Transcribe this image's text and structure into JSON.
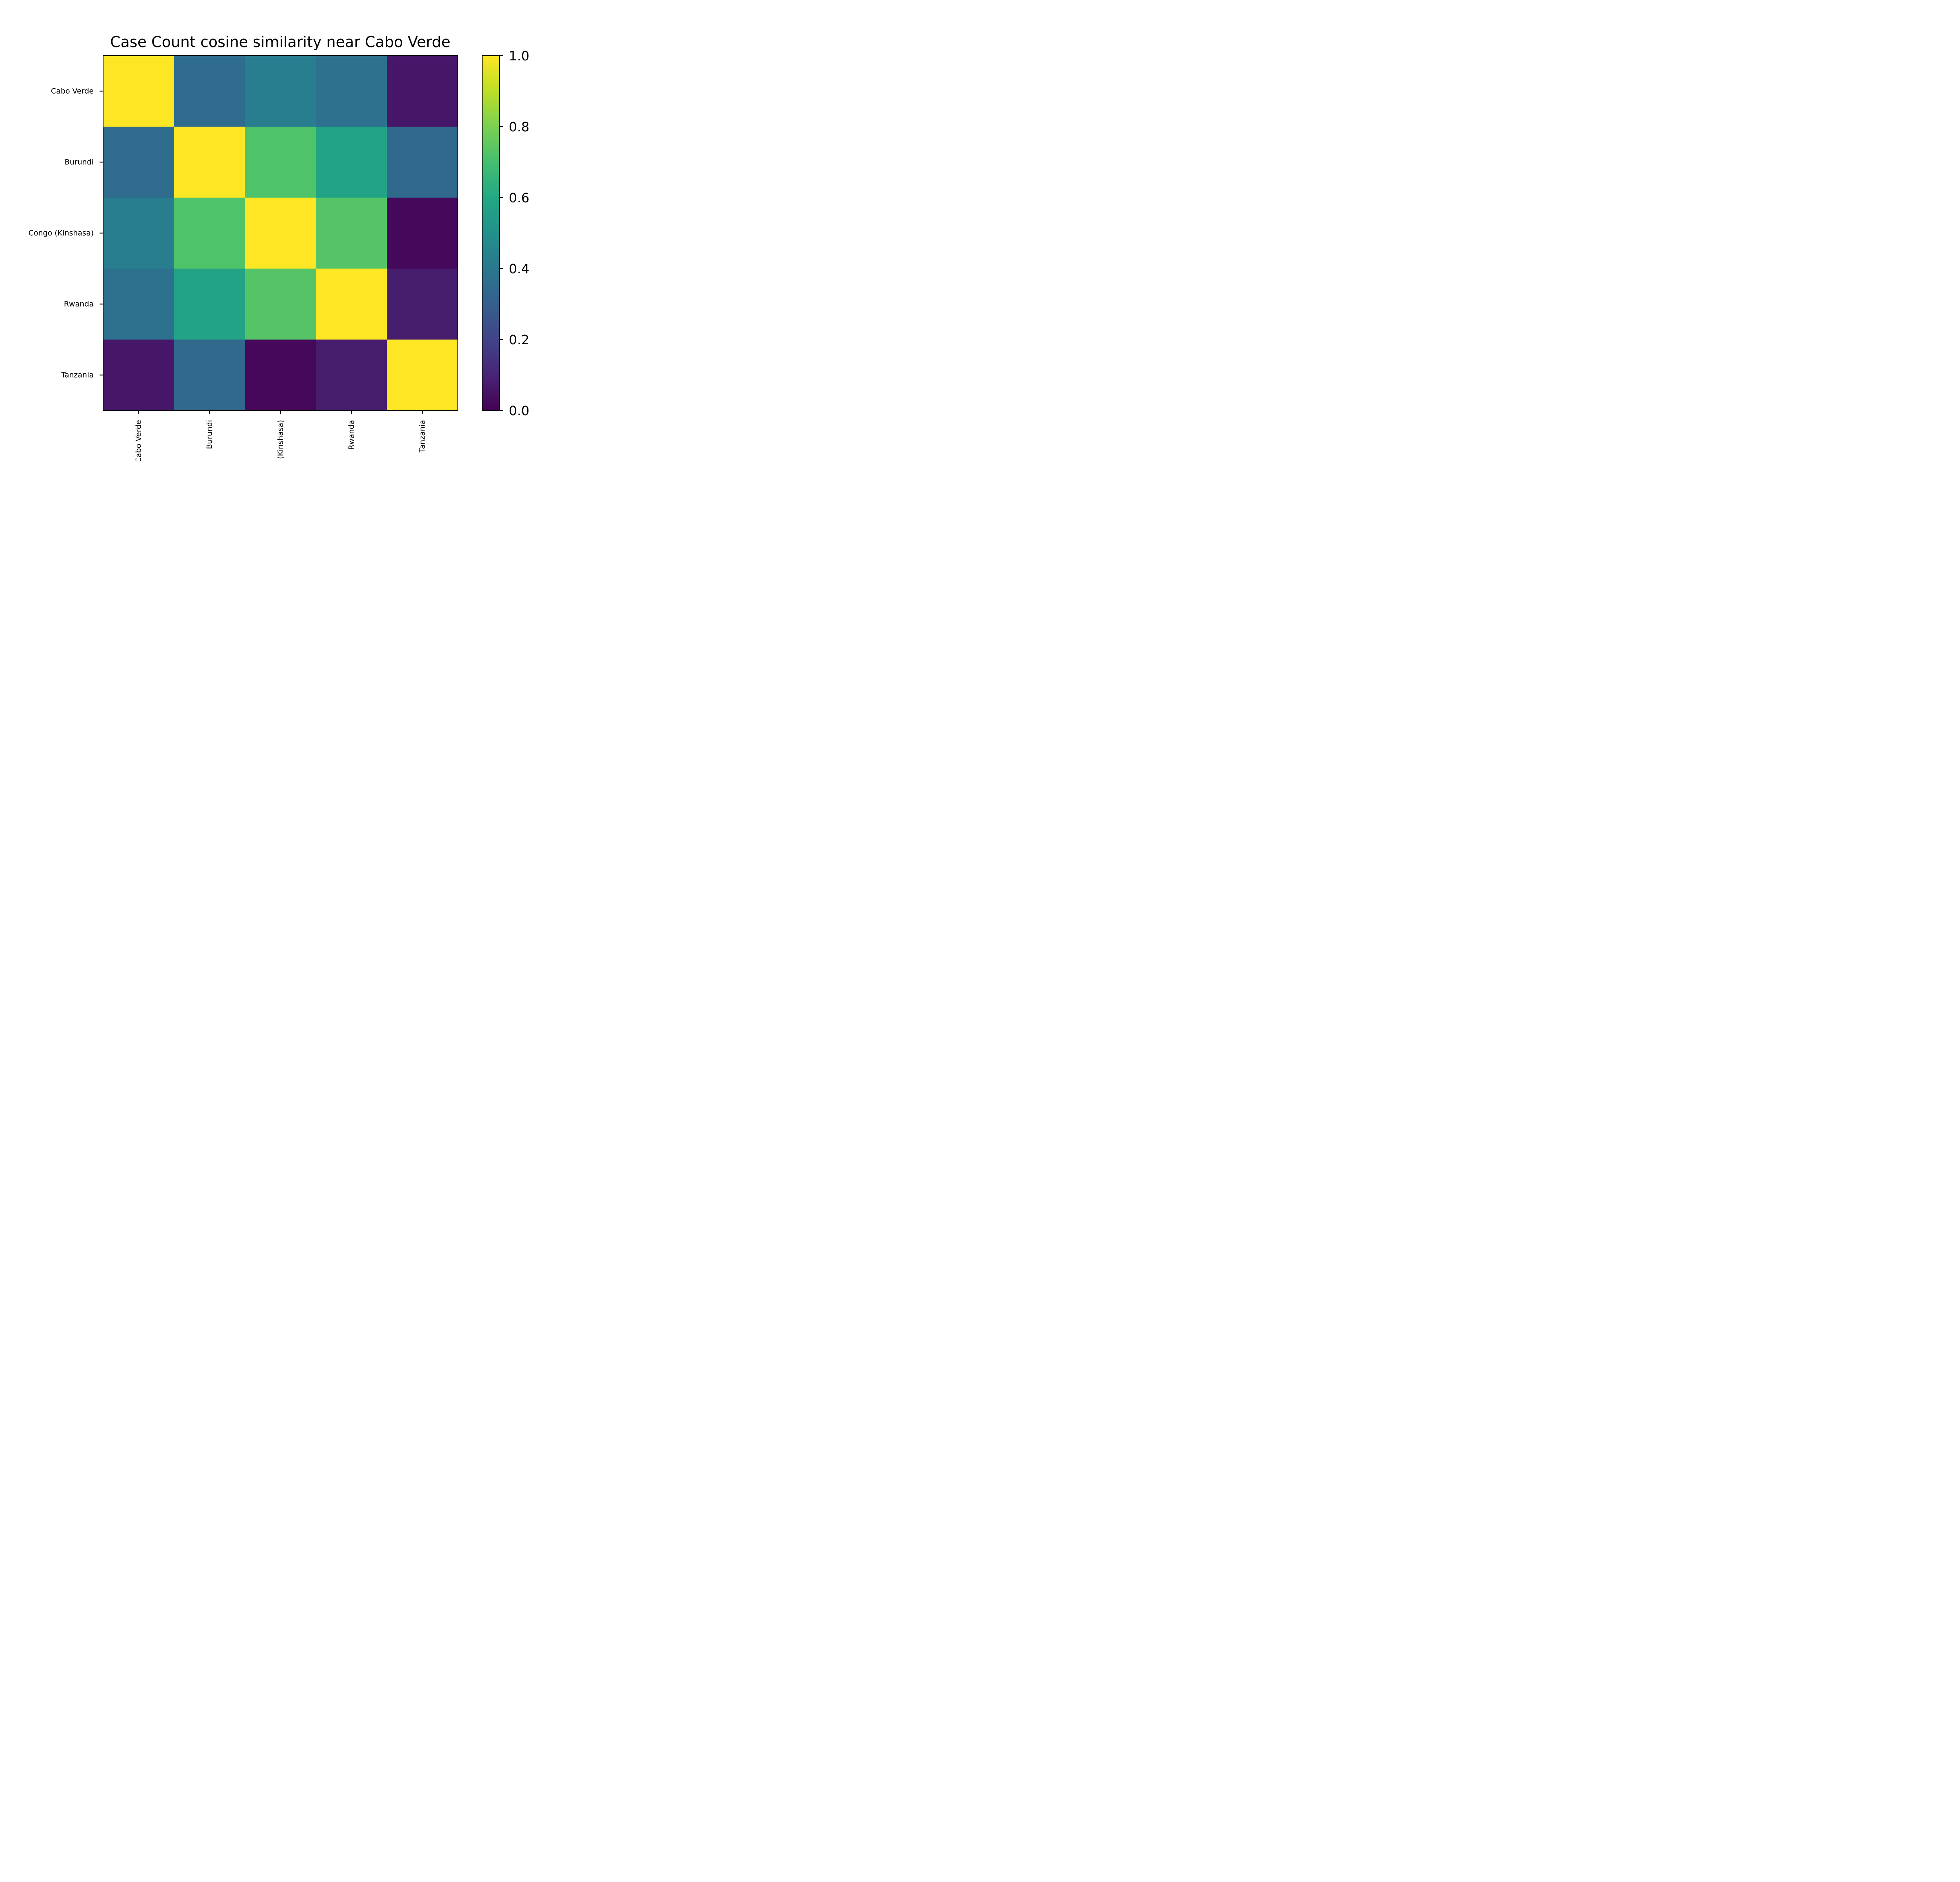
{
  "chart_data": {
    "type": "heatmap",
    "title": "Case Count cosine similarity near Cabo Verde",
    "x_categories": [
      "Cabo Verde",
      "Burundi",
      "Congo (Kinshasa)",
      "Rwanda",
      "Tanzania"
    ],
    "y_categories": [
      "Cabo Verde",
      "Burundi",
      "Congo (Kinshasa)",
      "Rwanda",
      "Tanzania"
    ],
    "values": [
      [
        1.0,
        0.35,
        0.42,
        0.37,
        0.06
      ],
      [
        0.35,
        1.0,
        0.72,
        0.58,
        0.34
      ],
      [
        0.42,
        0.72,
        1.0,
        0.73,
        0.02
      ],
      [
        0.37,
        0.58,
        0.73,
        1.0,
        0.08
      ],
      [
        0.06,
        0.34,
        0.02,
        0.08,
        1.0
      ]
    ],
    "colormap": "viridis",
    "colorbar": {
      "range": [
        0.0,
        1.0
      ],
      "ticks": [
        "0.0",
        "0.2",
        "0.4",
        "0.6",
        "0.8",
        "1.0"
      ]
    },
    "xlabel": "",
    "ylabel": "",
    "grid": false,
    "x_tick_rotation": "vertical"
  }
}
